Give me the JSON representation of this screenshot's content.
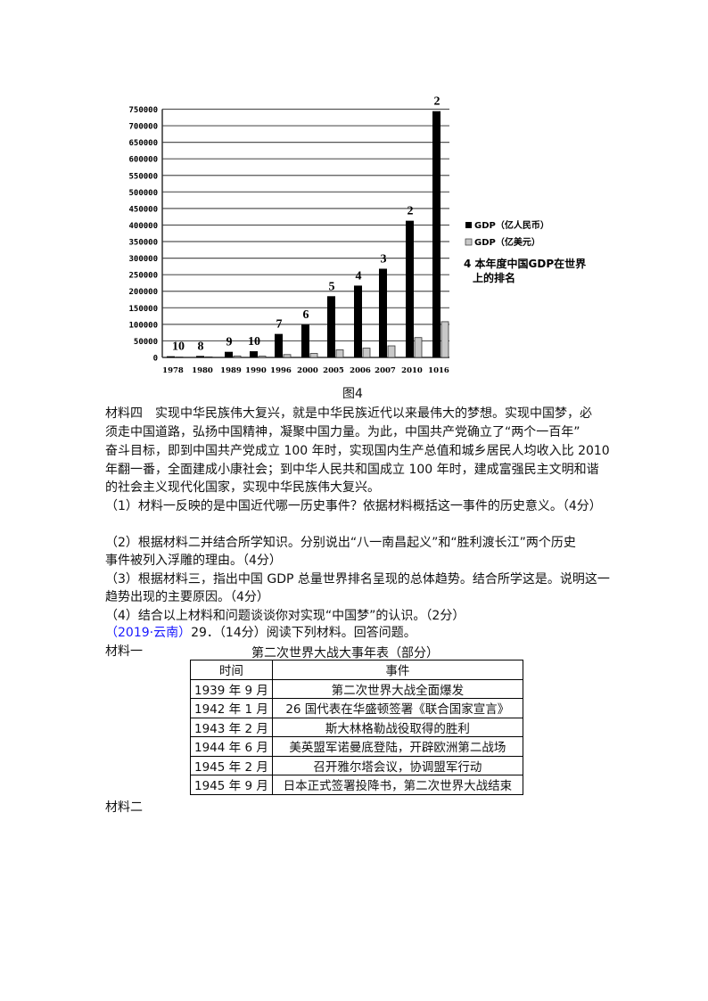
{
  "chart_data": {
    "type": "bar",
    "categories": [
      "1978",
      "1980",
      "1989",
      "1990",
      "1996",
      "2000",
      "2005",
      "2006",
      "2007",
      "2010",
      "1016"
    ],
    "series": [
      {
        "name": "GDP（亿人民币）",
        "color": "#000000",
        "values": [
          3600,
          4500,
          17000,
          18700,
          71000,
          99000,
          185000,
          217000,
          268000,
          413000,
          744000
        ]
      },
      {
        "name": "GDP（亿美元）",
        "color": "#c8c8c8",
        "values": [
          1500,
          1900,
          4500,
          3900,
          8600,
          12000,
          23000,
          28000,
          35000,
          60000,
          108000
        ]
      }
    ],
    "rank_labels": [
      "10",
      "8",
      "9",
      "10",
      "7",
      "6",
      "5",
      "4",
      "3",
      "2",
      "2"
    ],
    "rank_legend": [
      "4 本年度中国GDP在世界",
      "上的排名"
    ],
    "yticks": [
      "0",
      "50000",
      "100000",
      "150000",
      "200000",
      "250000",
      "300000",
      "350000",
      "400000",
      "450000",
      "500000",
      "550000",
      "600000",
      "650000",
      "700000",
      "750000"
    ],
    "ylim": [
      0,
      750000
    ],
    "grid": true,
    "legend_position": "right"
  },
  "caption": "图4",
  "paragraphs": [
    "材料四　实现中华民族伟大复兴，就是中华民族近代以来最伟大的梦想。实现中国梦，必",
    "须走中国道路，弘扬中国精神，凝聚中国力量。为此，中国共产党确立了“两个一百年”",
    "奋斗目标，即到中国共产党成立 100 年时，实现国内生产总值和城乡居民人均收入比 2010",
    "年翻一番，全面建成小康社会；到中华人民共和国成立 100 年时，建成富强民主文明和谐",
    "的社会主义现代化国家，实现中华民族伟大复兴。",
    "（1）材料一反映的是中国近代哪一历史事件？依据材料概括这一事件的历史意义。（4分）",
    "（2）根据材料二并结合所学知识。分别说出“八一南昌起义”和“胜利渡长江”两个历史",
    "事件被列入浮雕的理由。（4分）",
    "（3）根据材料三，指出中国 GDP 总量世界排名呈现的总体趋势。结合所学这是。说明这一",
    "趋势出现的主要原因。（4分）",
    "（4）结合以上材料和问题谈谈你对实现“中国梦”的认识。（2分）"
  ],
  "source_tag": "（2019·云南）",
  "question_intro": "29．（14分）阅读下列材料。回答问题。",
  "material1_label": "材料一",
  "table_title": "第二次世界大战大事年表（部分）",
  "table": {
    "headers": [
      "时间",
      "事件"
    ],
    "rows": [
      [
        "1939 年 9 月",
        "第二次世界大战全面爆发"
      ],
      [
        "1942 年 1 月",
        "26 国代表在华盛顿签署《联合国家宣言》"
      ],
      [
        "1943 年 2 月",
        "斯大林格勒战役取得的胜利"
      ],
      [
        "1944 年 6 月",
        "美英盟军诺曼底登陆，开辟欧洲第二战场"
      ],
      [
        "1945 年 2 月",
        "召开雅尔塔会议，协调盟军行动"
      ],
      [
        "1945 年 9 月",
        "日本正式签署投降书，第二次世界大战结束"
      ]
    ]
  },
  "material2_label": "材料二"
}
